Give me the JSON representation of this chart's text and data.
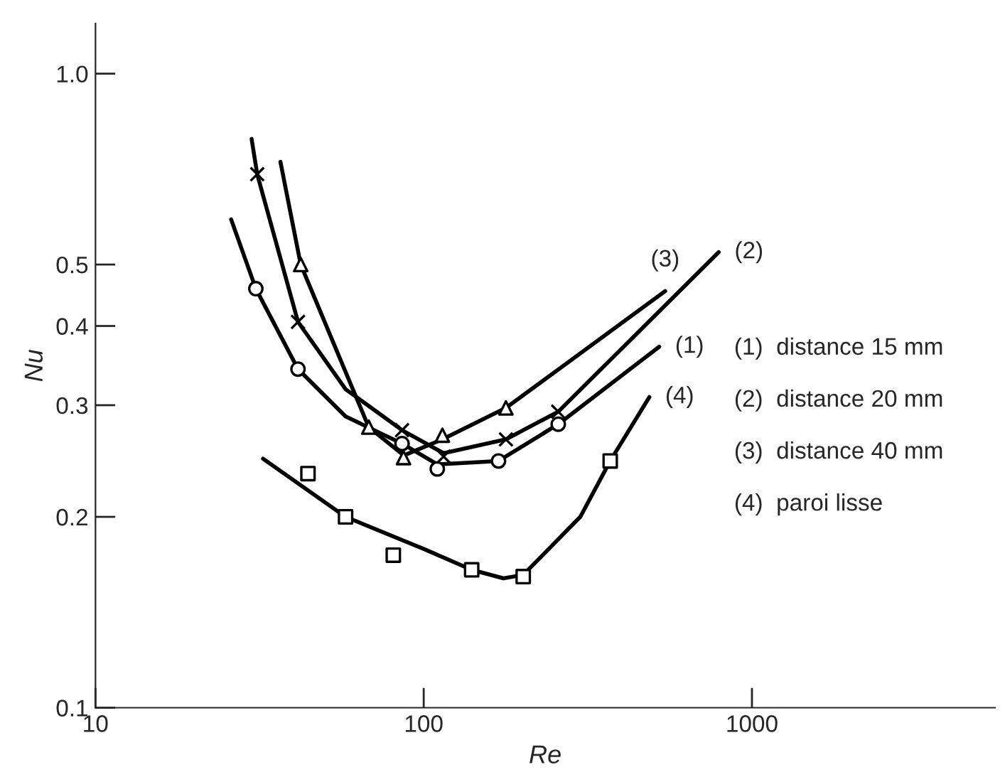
{
  "chart_data": {
    "type": "line",
    "xlabel": "Re",
    "ylabel": "Nu",
    "log": "xy",
    "xlim": [
      10,
      5500
    ],
    "ylim": [
      0.1,
      1.2
    ],
    "xticks": [
      10,
      100,
      1000
    ],
    "yticks": [
      {
        "value": 0.1,
        "label": "0.1"
      },
      {
        "value": 0.2,
        "label": "0.2"
      },
      {
        "value": 0.3,
        "label": "0.3"
      },
      {
        "value": 0.4,
        "label": "0.4"
      },
      {
        "value": 0.5,
        "label": "0.5"
      },
      {
        "value": 1.0,
        "label": "1.0"
      }
    ],
    "grid": false,
    "legend": false,
    "line_style": "solid",
    "marker": "none",
    "series": [
      {
        "name": "(1)",
        "color": "#000000",
        "x": [
          25.9,
          30.8,
          41.4,
          57.8,
          85.9,
          110,
          169,
          257,
          522
        ],
        "values": [
          0.589,
          0.458,
          0.342,
          0.288,
          0.261,
          0.242,
          0.245,
          0.28,
          0.371
        ]
      },
      {
        "name": "(2)",
        "color": "#000000",
        "x": [
          29.9,
          31.1,
          41.4,
          57.8,
          85.9,
          115,
          178,
          257,
          792
        ],
        "values": [
          0.789,
          0.694,
          0.406,
          0.318,
          0.274,
          0.252,
          0.265,
          0.293,
          0.523
        ]
      },
      {
        "name": "(3)",
        "color": "#000000",
        "x": [
          36.6,
          42.2,
          55,
          68,
          87,
          114,
          178,
          544
        ],
        "values": [
          0.726,
          0.5,
          0.36,
          0.277,
          0.25,
          0.265,
          0.297,
          0.454
        ]
      },
      {
        "name": "(4)",
        "color": "#000000",
        "x": [
          32.4,
          57.8,
          100,
          140,
          175,
          201,
          300,
          370,
          487
        ],
        "values": [
          0.247,
          0.2,
          0.178,
          0.165,
          0.16,
          0.162,
          0.2,
          0.245,
          0.309
        ]
      },
      {
        "type": "scatter",
        "marker": "circle",
        "color": "#000000",
        "x": [
          30.8,
          41.4,
          85.9,
          110,
          169,
          257
        ],
        "values": [
          0.458,
          0.342,
          0.261,
          0.238,
          0.245,
          0.28
        ]
      },
      {
        "type": "scatter",
        "marker": "cross",
        "color": "#000000",
        "x": [
          31.1,
          41.4,
          85.9,
          115,
          178,
          257
        ],
        "values": [
          0.694,
          0.406,
          0.274,
          0.249,
          0.265,
          0.293
        ]
      },
      {
        "type": "scatter",
        "marker": "triangle",
        "color": "#000000",
        "x": [
          42.2,
          68,
          86.8,
          114,
          178
        ],
        "values": [
          0.5,
          0.277,
          0.248,
          0.269,
          0.297
        ]
      },
      {
        "type": "scatter",
        "marker": "square",
        "color": "#000000",
        "x": [
          44.4,
          57.8,
          80.8,
          140,
          201,
          370
        ],
        "values": [
          0.234,
          0.2,
          0.174,
          0.165,
          0.161,
          0.245
        ]
      }
    ],
    "annotations": [
      "(1)  distance 15 mm",
      "(2)  distance 20 mm",
      "(3)  distance 40 mm",
      "(4)  paroi lisse"
    ]
  }
}
